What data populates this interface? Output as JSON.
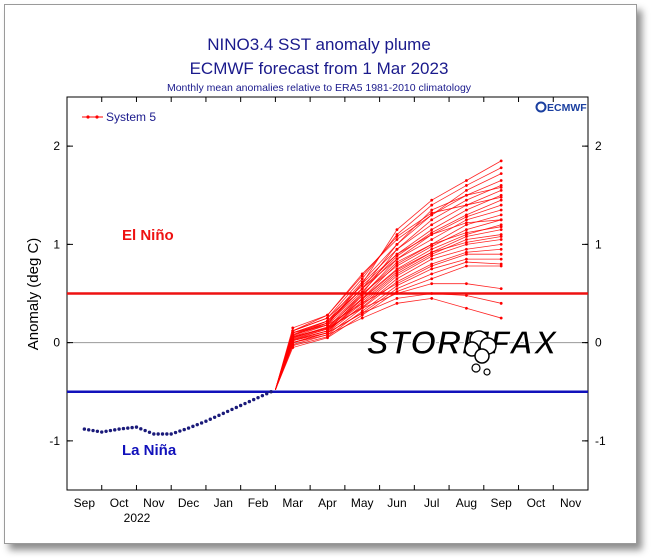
{
  "chart_data": {
    "type": "line",
    "title": "NINO3.4 SST anomaly plume",
    "subtitle": "ECMWF forecast from 1 Mar 2023",
    "caption": "Monthly mean anomalies relative to ERA5 1981-2010 climatology",
    "logo_text": "ECMWF",
    "ylabel": "Anomaly (deg C)",
    "xlabel": "",
    "x_tick_labels": [
      "Sep",
      "Oct",
      "Nov",
      "Dec",
      "Jan",
      "Feb",
      "Mar",
      "Apr",
      "May",
      "Jun",
      "Jul",
      "Aug",
      "Sep",
      "Oct",
      "Nov"
    ],
    "year_label": "2022",
    "y_ticks": [
      -1,
      0,
      1,
      2
    ],
    "ylim": [
      -1.5,
      2.5
    ],
    "grid": false,
    "legend": {
      "position": "top-left",
      "entries": [
        "System 5"
      ]
    },
    "thresholds": [
      {
        "value": 0.5,
        "label": "El Niño",
        "color": "#ee1111"
      },
      {
        "value": -0.5,
        "label": "La Niña",
        "color": "#1111bb"
      }
    ],
    "observed": {
      "x": [
        0,
        0.5,
        1,
        1.5,
        2,
        2.5,
        3,
        3.5,
        4,
        4.5,
        5,
        5.5
      ],
      "values": [
        -0.88,
        -0.91,
        -0.88,
        -0.86,
        -0.93,
        -0.93,
        -0.87,
        -0.8,
        -0.72,
        -0.64,
        -0.56,
        -0.48
      ],
      "color": "#1a1a7a"
    },
    "forecast": {
      "name": "System 5",
      "color": "#ff0000",
      "x": [
        5.5,
        6,
        7,
        8,
        9,
        10,
        11,
        12
      ],
      "members": [
        [
          -0.48,
          0.1,
          0.2,
          0.6,
          1.15,
          1.45,
          1.65,
          1.85
        ],
        [
          -0.48,
          0.12,
          0.25,
          0.65,
          1.1,
          1.4,
          1.6,
          1.78
        ],
        [
          -0.48,
          0.15,
          0.28,
          0.7,
          1.05,
          1.3,
          1.55,
          1.72
        ],
        [
          -0.48,
          0.08,
          0.22,
          0.55,
          1.0,
          1.35,
          1.5,
          1.65
        ],
        [
          -0.48,
          0.1,
          0.18,
          0.6,
          0.95,
          1.25,
          1.45,
          1.6
        ],
        [
          -0.48,
          0.05,
          0.15,
          0.5,
          0.95,
          1.2,
          1.4,
          1.55
        ],
        [
          -0.48,
          0.12,
          0.25,
          0.58,
          0.9,
          1.15,
          1.35,
          1.5
        ],
        [
          -0.48,
          0.07,
          0.2,
          0.52,
          0.88,
          1.12,
          1.3,
          1.45
        ],
        [
          -0.48,
          0.02,
          0.12,
          0.48,
          0.85,
          1.1,
          1.28,
          1.4
        ],
        [
          -0.48,
          0.1,
          0.22,
          0.55,
          0.85,
          1.05,
          1.25,
          1.35
        ],
        [
          -0.48,
          0.0,
          0.1,
          0.45,
          0.8,
          1.0,
          1.2,
          1.3
        ],
        [
          -0.48,
          0.08,
          0.18,
          0.5,
          0.78,
          0.98,
          1.15,
          1.25
        ],
        [
          -0.48,
          0.05,
          0.15,
          0.45,
          0.75,
          0.95,
          1.1,
          1.2
        ],
        [
          -0.48,
          0.03,
          0.12,
          0.42,
          0.72,
          0.92,
          1.08,
          1.15
        ],
        [
          -0.48,
          0.06,
          0.18,
          0.4,
          0.7,
          0.9,
          1.05,
          1.1
        ],
        [
          -0.48,
          0.0,
          0.1,
          0.38,
          0.68,
          0.88,
          1.0,
          1.05
        ],
        [
          -0.48,
          0.04,
          0.14,
          0.36,
          0.65,
          0.85,
          0.95,
          1.0
        ],
        [
          -0.48,
          -0.02,
          0.08,
          0.35,
          0.62,
          0.8,
          0.92,
          0.95
        ],
        [
          -0.48,
          0.02,
          0.12,
          0.4,
          0.6,
          0.78,
          0.9,
          0.9
        ],
        [
          -0.48,
          -0.03,
          0.06,
          0.32,
          0.58,
          0.75,
          0.85,
          0.85
        ],
        [
          -0.48,
          0.0,
          0.1,
          0.3,
          0.55,
          0.7,
          0.82,
          0.8
        ],
        [
          -0.48,
          -0.05,
          0.05,
          0.28,
          0.52,
          0.65,
          0.78,
          0.78
        ],
        [
          -0.48,
          0.06,
          0.15,
          0.35,
          0.5,
          0.6,
          0.6,
          0.55
        ],
        [
          -0.48,
          0.02,
          0.1,
          0.3,
          0.45,
          0.5,
          0.48,
          0.4
        ],
        [
          -0.48,
          0.0,
          0.08,
          0.25,
          0.4,
          0.45,
          0.35,
          0.25
        ],
        [
          -0.48,
          0.1,
          0.22,
          0.62,
          1.0,
          1.3,
          1.5,
          1.58
        ],
        [
          -0.48,
          0.12,
          0.28,
          0.68,
          1.08,
          1.32,
          1.4,
          1.48
        ],
        [
          -0.48,
          0.08,
          0.2,
          0.55,
          0.9,
          1.1,
          1.22,
          1.25
        ],
        [
          -0.48,
          0.05,
          0.16,
          0.48,
          0.82,
          1.0,
          1.12,
          1.18
        ],
        [
          -0.48,
          0.03,
          0.14,
          0.44,
          0.74,
          0.92,
          1.02,
          1.08
        ]
      ]
    },
    "watermark": "STORMFAX"
  }
}
